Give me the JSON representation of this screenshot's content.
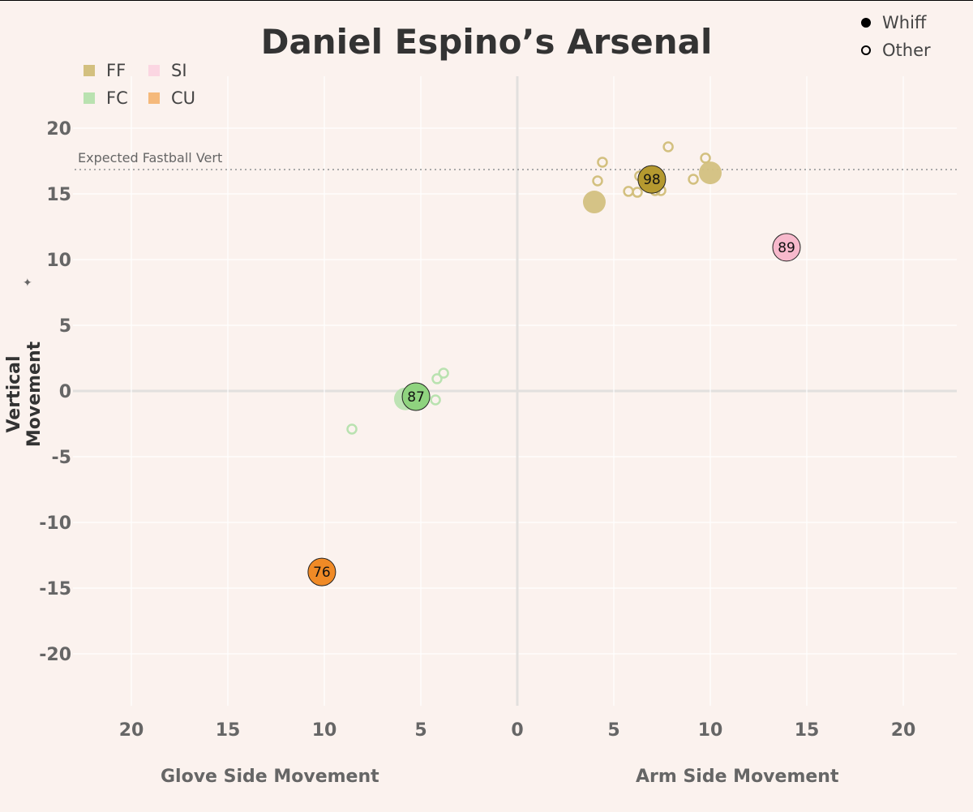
{
  "chart_data": {
    "type": "scatter",
    "title": "Daniel Espino’s Arsenal",
    "xlabel_left": "Glove Side Movement",
    "xlabel_right": "Arm Side Movement",
    "ylabel": "Vertical Movement",
    "xlim": [
      -23,
      23
    ],
    "ylim": [
      -24,
      24
    ],
    "x_ticks": [
      -20,
      -15,
      -10,
      -5,
      0,
      5,
      10,
      15,
      20
    ],
    "x_tick_labels": [
      "20",
      "15",
      "10",
      "5",
      "0",
      "5",
      "10",
      "15",
      "20"
    ],
    "y_ticks": [
      20,
      15,
      10,
      5,
      0,
      -5,
      -10,
      -15,
      -20
    ],
    "y_tick_labels": [
      "20",
      "15",
      "10",
      "5",
      "0",
      "-5",
      "-10",
      "-15",
      "-20"
    ],
    "reference_line": {
      "label": "Expected Fastball Vert",
      "y": 16.85
    },
    "legend_types": [
      {
        "name": "FF",
        "color": "#d3c07f"
      },
      {
        "name": "SI",
        "color": "#fbd6e2"
      },
      {
        "name": "FC",
        "color": "#b9e2b0"
      },
      {
        "name": "CU",
        "color": "#f5b97b"
      }
    ],
    "legend_outcome": [
      {
        "name": "Whiff",
        "filled": true
      },
      {
        "name": "Other",
        "filled": false
      }
    ],
    "series": [
      {
        "name": "FF",
        "color": "#d3c07f",
        "mean_color": "#b5992f",
        "other": [
          [
            4.41,
            17.41
          ],
          [
            4.16,
            15.99
          ],
          [
            6.34,
            16.36
          ],
          [
            5.76,
            15.19
          ],
          [
            6.22,
            15.12
          ],
          [
            7.14,
            15.25
          ],
          [
            7.44,
            15.25
          ],
          [
            7.82,
            18.58
          ],
          [
            9.75,
            17.72
          ],
          [
            9.12,
            16.11
          ]
        ],
        "whiff": [
          [
            3.99,
            14.38
          ],
          [
            10.0,
            16.6
          ]
        ],
        "mean": {
          "x": 6.97,
          "y": 16.1,
          "velo": "98"
        }
      },
      {
        "name": "SI",
        "color": "#fbd6e2",
        "mean_color": "#f7b9cc",
        "other": [],
        "whiff": [],
        "mean": {
          "x": 13.95,
          "y": 10.93,
          "velo": "89"
        }
      },
      {
        "name": "FC",
        "color": "#b9e2b0",
        "mean_color": "#8fd37f",
        "other": [
          [
            -3.82,
            1.36
          ],
          [
            -4.16,
            0.93
          ],
          [
            -4.24,
            -0.68
          ],
          [
            -8.57,
            -2.9
          ]
        ],
        "whiff": [
          [
            -5.8,
            -0.6
          ]
        ],
        "mean": {
          "x": -5.25,
          "y": -0.43,
          "velo": "87"
        }
      },
      {
        "name": "CU",
        "color": "#f5b97b",
        "mean_color": "#f08a26",
        "other": [],
        "whiff": [],
        "mean": {
          "x": -10.13,
          "y": -13.77,
          "velo": "76"
        }
      }
    ]
  }
}
